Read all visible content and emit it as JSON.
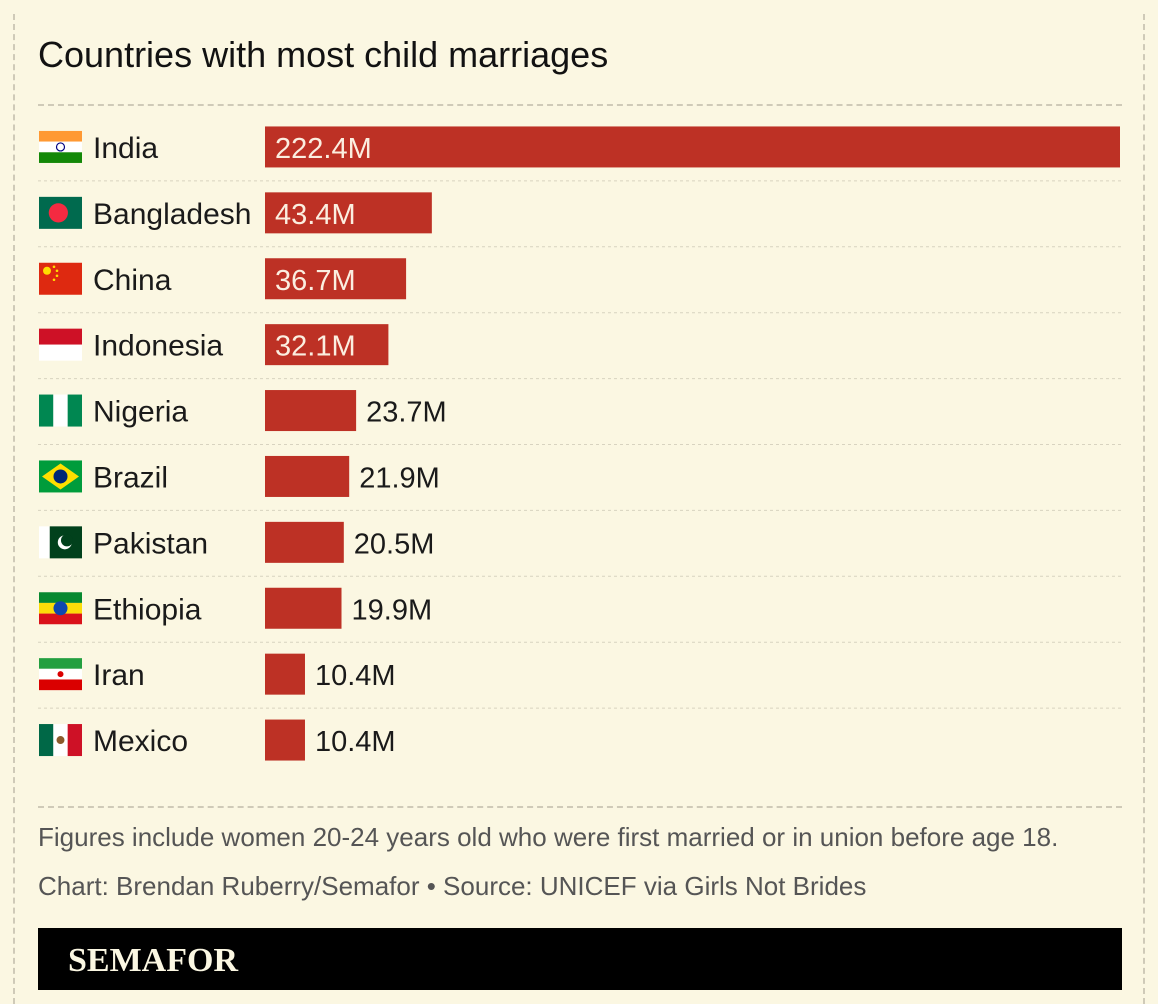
{
  "header": {
    "title": "Countries with most child marriages"
  },
  "chart_data": {
    "type": "bar",
    "orientation": "horizontal",
    "title": "Countries with most child marriages",
    "categories": [
      "India",
      "Bangladesh",
      "China",
      "Indonesia",
      "Nigeria",
      "Brazil",
      "Pakistan",
      "Ethiopia",
      "Iran",
      "Mexico"
    ],
    "values": [
      222.4,
      43.4,
      36.7,
      32.1,
      23.7,
      21.9,
      20.5,
      19.9,
      10.4,
      10.4
    ],
    "value_labels": [
      "222.4M",
      "43.4M",
      "36.7M",
      "32.1M",
      "23.7M",
      "21.9M",
      "20.5M",
      "19.9M",
      "10.4M",
      "10.4M"
    ],
    "unit": "M",
    "xlim": [
      0,
      222.4
    ],
    "bar_color": "#bd3125",
    "grid": false,
    "flags": [
      "india-flag-icon",
      "bangladesh-flag-icon",
      "china-flag-icon",
      "indonesia-flag-icon",
      "nigeria-flag-icon",
      "brazil-flag-icon",
      "pakistan-flag-icon",
      "ethiopia-flag-icon",
      "iran-flag-icon",
      "mexico-flag-icon"
    ]
  },
  "notes": {
    "caption": "Figures include women 20-24 years old who were first married or in union before age 18.",
    "credit": "Chart: Brendan Ruberry/Semafor • Source: UNICEF via Girls Not Brides"
  },
  "footer": {
    "brand": "SEMAFOR"
  },
  "colors": {
    "background": "#fbf7e2",
    "bar": "#bd3125",
    "footer": "#000000"
  }
}
